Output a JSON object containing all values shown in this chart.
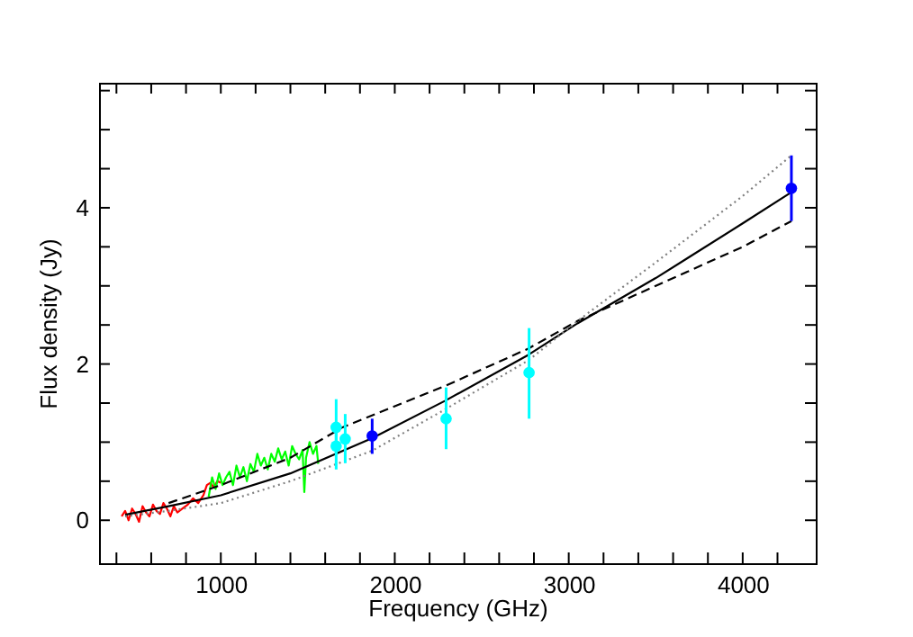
{
  "chart_data": {
    "type": "scatter",
    "xlabel": "Frequency (GHz)",
    "ylabel": "Flux density (Jy)",
    "xlim": [
      300,
      4420
    ],
    "ylim": [
      -0.55,
      5.6
    ],
    "xticks": [
      {
        "value": 400,
        "label": null
      },
      {
        "value": 600,
        "label": null
      },
      {
        "value": 800,
        "label": null
      },
      1000,
      {
        "value": 1200,
        "label": null
      },
      {
        "value": 1400,
        "label": null
      },
      {
        "value": 1600,
        "label": null
      },
      {
        "value": 1800,
        "label": null
      },
      2000,
      {
        "value": 2200,
        "label": null
      },
      {
        "value": 2400,
        "label": null
      },
      {
        "value": 2600,
        "label": null
      },
      {
        "value": 2800,
        "label": null
      },
      3000,
      {
        "value": 3200,
        "label": null
      },
      {
        "value": 3400,
        "label": null
      },
      {
        "value": 3600,
        "label": null
      },
      {
        "value": 3800,
        "label": null
      },
      4000,
      {
        "value": 4200,
        "label": null
      }
    ],
    "yticks": [
      0,
      {
        "value": 0.5,
        "label": null
      },
      {
        "value": 1,
        "label": null
      },
      {
        "value": 1.5,
        "label": null
      },
      2,
      {
        "value": 2.5,
        "label": null
      },
      {
        "value": 3,
        "label": null
      },
      {
        "value": 3.5,
        "label": null
      },
      4,
      {
        "value": 4.5,
        "label": null
      },
      {
        "value": 5,
        "label": null
      },
      {
        "value": 5.5,
        "label": null
      }
    ],
    "grid": false,
    "series": [
      {
        "type": "line",
        "color": "#ff0000",
        "line_style": "solid",
        "marker": "none",
        "x": [
          430,
          450,
          470,
          490,
          510,
          530,
          550,
          570,
          590,
          610,
          630,
          650,
          670,
          690,
          710,
          730,
          750,
          780,
          810,
          840,
          870,
          900,
          920,
          940,
          960,
          980,
          1000
        ],
        "values": [
          0.05,
          0.12,
          0.0,
          0.15,
          0.08,
          -0.02,
          0.18,
          0.1,
          0.05,
          0.2,
          0.12,
          0.08,
          0.22,
          0.15,
          0.05,
          0.18,
          0.1,
          0.15,
          0.2,
          0.28,
          0.22,
          0.32,
          0.45,
          0.48,
          0.42,
          0.5,
          0.48
        ]
      },
      {
        "type": "line",
        "color": "#00ff00",
        "line_style": "solid",
        "marker": "none",
        "x": [
          930,
          950,
          970,
          990,
          1010,
          1030,
          1050,
          1070,
          1090,
          1110,
          1130,
          1150,
          1170,
          1190,
          1210,
          1230,
          1250,
          1270,
          1290,
          1310,
          1330,
          1350,
          1370,
          1390,
          1410,
          1430,
          1450,
          1470,
          1480,
          1490,
          1510,
          1530,
          1550,
          1560
        ],
        "values": [
          0.3,
          0.55,
          0.4,
          0.6,
          0.45,
          0.55,
          0.62,
          0.45,
          0.7,
          0.55,
          0.68,
          0.5,
          0.72,
          0.62,
          0.85,
          0.7,
          0.8,
          0.65,
          0.85,
          0.75,
          0.92,
          0.78,
          0.88,
          0.7,
          0.95,
          0.85,
          0.78,
          0.9,
          0.36,
          0.8,
          1.0,
          0.85,
          0.95,
          0.72
        ]
      },
      {
        "type": "line",
        "color": "#000000",
        "line_style": "solid",
        "marker": "none",
        "x": [
          450,
          700,
          1000,
          1400,
          1870,
          2290,
          2770,
          3050,
          3500,
          4000,
          4280
        ],
        "values": [
          0.07,
          0.18,
          0.32,
          0.6,
          1.05,
          1.53,
          2.12,
          2.52,
          3.1,
          3.8,
          4.2
        ]
      },
      {
        "type": "line",
        "color": "#000000",
        "line_style": "dashed",
        "marker": "none",
        "x": [
          700,
          1000,
          1400,
          1700,
          2290,
          2770,
          3050,
          3500,
          4000,
          4280
        ],
        "values": [
          0.22,
          0.45,
          0.8,
          1.19,
          1.72,
          2.2,
          2.55,
          3.0,
          3.5,
          3.83
        ]
      },
      {
        "type": "line",
        "color": "#808080",
        "line_style": "dotted",
        "marker": "none",
        "x": [
          450,
          700,
          1000,
          1400,
          1870,
          2290,
          2770,
          3050,
          3500,
          4000,
          4280
        ],
        "values": [
          0.05,
          0.12,
          0.22,
          0.5,
          0.89,
          1.42,
          2.05,
          2.55,
          3.3,
          4.15,
          4.67
        ]
      },
      {
        "type": "scatter",
        "color": "#00ffff",
        "marker": "circle",
        "x": [
          1663,
          1663,
          1715,
          2295,
          2772
        ],
        "values": [
          1.19,
          0.95,
          1.04,
          1.3,
          1.89
        ],
        "errors": [
          [
            0.85,
            1.55
          ],
          [
            0.65,
            1.25
          ],
          [
            0.73,
            1.36
          ],
          [
            0.91,
            1.7
          ],
          [
            1.3,
            2.46
          ]
        ]
      },
      {
        "type": "scatter",
        "color": "#0000ff",
        "marker": "circle",
        "x": [
          1870,
          4280
        ],
        "values": [
          1.08,
          4.25
        ],
        "errors": [
          [
            0.85,
            1.3
          ],
          [
            3.83,
            4.67
          ]
        ]
      }
    ]
  }
}
